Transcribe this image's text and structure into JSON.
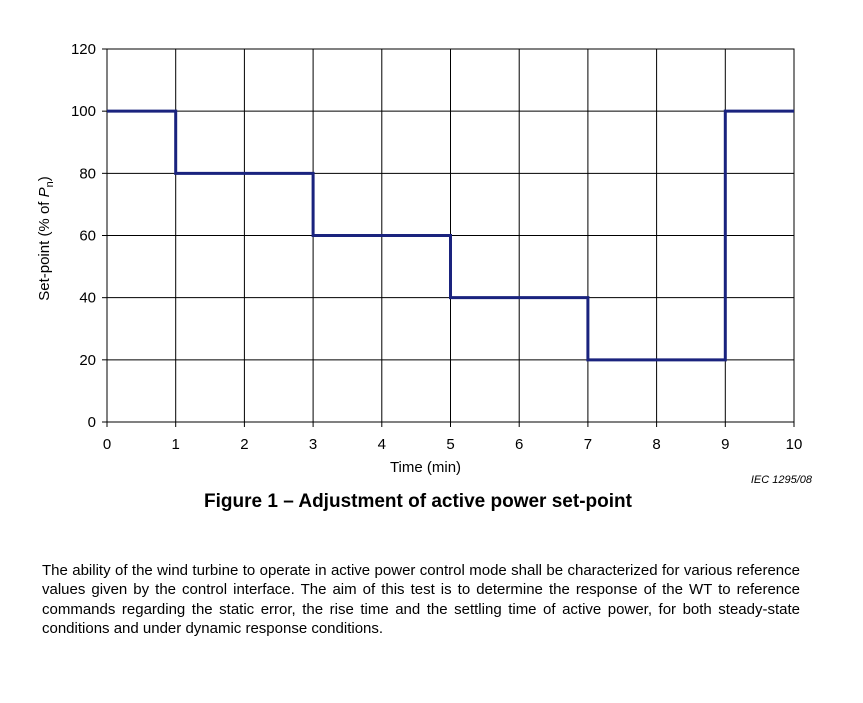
{
  "chart_data": {
    "type": "line",
    "step": true,
    "x": [
      0,
      1,
      1,
      3,
      3,
      5,
      5,
      7,
      7,
      9,
      9,
      10
    ],
    "series": [
      {
        "values": [
          100,
          100,
          80,
          80,
          60,
          60,
          40,
          40,
          20,
          20,
          100,
          100
        ],
        "color": "#1a237e"
      }
    ],
    "xlabel": "Time   (min)",
    "ylabel_prefix": "Set-point  (% of ",
    "ylabel_var": "P",
    "ylabel_sub": "n",
    "ylabel_suffix": ")",
    "xlim": [
      0,
      10
    ],
    "ylim": [
      0,
      120
    ],
    "xticks": [
      "0",
      "1",
      "2",
      "3",
      "4",
      "5",
      "6",
      "7",
      "8",
      "9",
      "10"
    ],
    "yticks": [
      "0",
      "20",
      "40",
      "60",
      "80",
      "100",
      "120"
    ],
    "grid": true
  },
  "figure": {
    "reference": "IEC   1295/08",
    "caption": "Figure 1 – Adjustment of active power set-point"
  },
  "body_text": "The ability of the wind turbine to operate in active power control mode shall be characterized for various reference values given by the control interface. The aim of this test is to determine the response of the WT to reference commands regarding the static error, the rise time and the settling time of active power, for both steady-state conditions and under dynamic response conditions."
}
